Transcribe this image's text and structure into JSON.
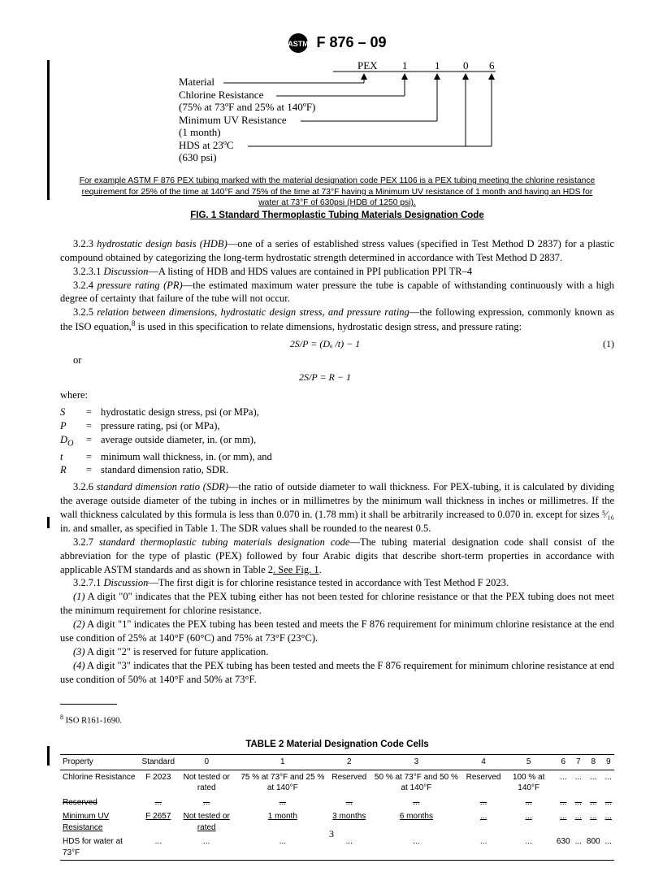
{
  "header": {
    "designation": "F 876 – 09"
  },
  "figure1": {
    "code_header": "PEX",
    "digits": [
      "1",
      "1",
      "0",
      "6"
    ],
    "rows": [
      {
        "label": "Material",
        "sub": ""
      },
      {
        "label": "Chlorine Resistance",
        "sub": "(75% at 73ºF and 25% at 140ºF)"
      },
      {
        "label": "Minimum UV Resistance",
        "sub": "(1 month)"
      },
      {
        "label": "HDS at 23ºC",
        "sub": "(630 psi)"
      }
    ],
    "note": "For example ASTM F 876 PEX tubing marked with the material designation code PEX 1106 is a PEX tubing meeting the chlorine resistance requirement for 25% of the time at 140°F and 75% of the time at 73°F having a Minimum UV resistance of 1 month and having an HDS for water at 73°F of 630psi (HDB of 1250 psi).",
    "title": "FIG. 1 Standard Thermoplastic Tubing Materials Designation Code"
  },
  "body": {
    "p323": "3.2.3 ",
    "p323_term": "hydrostatic design basis (HDB)",
    "p323_rest": "—one of a series of established stress values (specified in Test Method D 2837) for a plastic compound obtained by categorizing the long-term hydrostatic strength determined in accordance with Test Method D 2837.",
    "p3231": "3.2.3.1 ",
    "p3231_term": "Discussion",
    "p3231_rest": "—A listing of HDB and HDS values are contained in PPI publication PPI TR–4",
    "p324": "3.2.4 ",
    "p324_term": "pressure rating (PR)",
    "p324_rest": "—the estimated maximum water pressure the tube is capable of withstanding continuously with a high degree of certainty that failure of the tube will not occur.",
    "p325": "3.2.5 ",
    "p325_term": "relation between dimensions, hydrostatic design stress, and pressure rating",
    "p325_rest": "—the following expression, commonly known as the ISO equation,",
    "p325_rest2": " is used in this specification to relate dimensions, hydrostatic design stress, and pressure rating:",
    "eq1": "2S/P = (Dₒ /t) − 1",
    "eq1_num": "(1)",
    "or": "or",
    "eq2": "2S/P = R − 1",
    "where": "where:",
    "defs": {
      "S": "hydrostatic design stress, psi (or MPa),",
      "P": "pressure rating, psi (or MPa),",
      "Do": "average outside diameter, in. (or mm),",
      "t": "minimum wall thickness, in. (or mm), and",
      "R": "standard dimension ratio, SDR."
    },
    "p326": "3.2.6 ",
    "p326_term": "standard dimension ratio (SDR)",
    "p326_rest": "—the ratio of outside diameter to wall thickness. For PEX-tubing, it is calculated by dividing the average outside diameter of the tubing in inches or in millimetres by the minimum wall thickness in inches or millimetres. If the wall thickness calculated by this formula is less than 0.070 in. (1.78 mm) it shall be arbitrarily increased to 0.070 in. except for sizes ⁵⁄₁₆ in. and smaller, as specified in Table 1. The SDR values shall be rounded to the nearest 0.5.",
    "p327": "3.2.7 ",
    "p327_term": "standard thermoplastic tubing materials designation code",
    "p327_rest": "—The tubing material designation code shall consist of the abbreviation for the type of plastic (PEX) followed by four Arabic digits that describe short-term properties in accordance with applicable ASTM standards and as shown in Table 2",
    "p327_add": ". See Fig. 1",
    "p327_end": ".",
    "p3271": "3.2.7.1 ",
    "p3271_term": "Discussion",
    "p3271_rest": "—The first digit is for chlorine resistance tested in accordance with Test Method F 2023.",
    "n1": "(1)",
    "n1_rest": " A digit \"0\" indicates that the PEX tubing either has not been tested for chlorine resistance or that the PEX tubing does not meet the minimum requirement for chlorine resistance.",
    "n2": "(2)",
    "n2_rest": " A digit \"1\" indicates the PEX tubing has been tested and meets the F 876 requirement for minimum chlorine resistance at the end use condition of 25% at 140°F (60°C) and 75% at 73°F (23°C).",
    "n3": "(3)",
    "n3_rest": " A digit \"2\" is reserved for future application.",
    "n4": "(4)",
    "n4_rest": " A digit \"3\" indicates that the PEX tubing has been tested and meets the F 876 requirement for minimum chlorine resistance at end use condition of 50% at 140°F and 50% at 73°F.",
    "fn8_mark": "8",
    "fn8": " ISO R161-1690."
  },
  "table2": {
    "title": "TABLE 2  Material Designation Code Cells",
    "headers": [
      "Property",
      "Standard",
      "0",
      "1",
      "2",
      "3",
      "4",
      "5",
      "6",
      "7",
      "8",
      "9"
    ],
    "rows": [
      {
        "cells": [
          "Chlorine Resistance",
          "F 2023",
          "Not tested or rated",
          "75 % at 73°F and 25 % at 140°F",
          "Reserved",
          "50 % at 73°F and 50 % at 140°F",
          "Reserved",
          "100 % at 140°F",
          "...",
          "...",
          "...",
          "..."
        ],
        "strike": false
      },
      {
        "cells": [
          "Reserved",
          "...",
          "...",
          "...",
          "...",
          "...",
          "...",
          "...",
          "...",
          "...",
          "...",
          "..."
        ],
        "strike": true
      },
      {
        "cells": [
          "Minimum UV Resistance",
          "F 2657",
          "Not tested or rated",
          "1 month",
          "3 months",
          "6 months",
          "...",
          "...",
          "...",
          "...",
          "...",
          "..."
        ],
        "underline": true
      },
      {
        "cells": [
          "HDS for water at 73°F",
          "...",
          "...",
          "...",
          "...",
          "...",
          "...",
          "...",
          "630",
          "...",
          "800",
          "..."
        ],
        "strike": false
      }
    ]
  },
  "pagenum": "3",
  "colors": {
    "text": "#000000",
    "bg": "#ffffff"
  }
}
